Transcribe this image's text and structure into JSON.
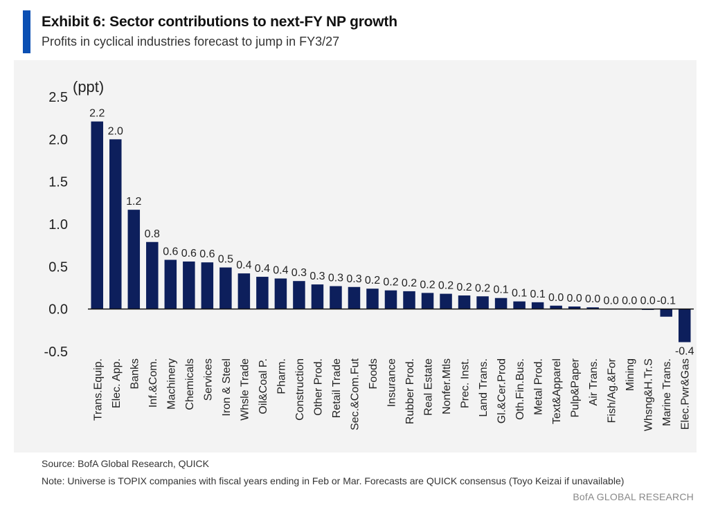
{
  "header": {
    "title": "Exhibit 6: Sector contributions to next-FY NP growth",
    "subtitle": "Profits in cyclical industries forecast to jump in FY3/27"
  },
  "footer": {
    "source": "Source: BofA Global Research, QUICK",
    "note": "Note: Universe is TOPIX companies with fiscal years ending in Feb or Mar. Forecasts are QUICK consensus (Toyo Keizai if unavailable)",
    "brand": "BofA GLOBAL RESEARCH"
  },
  "colors": {
    "bar": "#0d1f5c",
    "accent": "#0a4fb3",
    "panel": "#f3f3f3"
  },
  "chart_data": {
    "type": "bar",
    "title": "",
    "xlabel": "",
    "ylabel": "(ppt)",
    "ylim": [
      -0.5,
      2.5
    ],
    "yticks": [
      -0.5,
      0.0,
      0.5,
      1.0,
      1.5,
      2.0,
      2.5
    ],
    "ytick_labels": [
      "-0.5",
      "0.0",
      "0.5",
      "1.0",
      "1.5",
      "2.0",
      "2.5"
    ],
    "grid": false,
    "categories": [
      "Trans.Equip.",
      "Elec. App.",
      "Banks",
      "Inf.&Com.",
      "Machinery",
      "Chemicals",
      "Services",
      "Iron & Steel",
      "Whsle Trade",
      "Oil&Coal P.",
      "Pharm.",
      "Construction",
      "Other Prod.",
      "Retail Trade",
      "Sec.&Com.Fut",
      "Foods",
      "Insurance",
      "Rubber Prod.",
      "Real Estate",
      "Nonfer.Mtls",
      "Prec. Inst.",
      "Land Trans.",
      "Gl.&Cer.Prod",
      "Oth.Fin.Bus.",
      "Metal Prod.",
      "Text&Apparel",
      "Pulp&Paper",
      "Air Trans.",
      "Fish/Ag.&For",
      "Mining",
      "Whsng&H.Tr.S",
      "Marine Trans.",
      "Elec.Pwr&Gas"
    ],
    "values": [
      2.21,
      2.0,
      1.17,
      0.79,
      0.58,
      0.56,
      0.55,
      0.49,
      0.42,
      0.38,
      0.36,
      0.33,
      0.29,
      0.27,
      0.26,
      0.24,
      0.22,
      0.21,
      0.19,
      0.18,
      0.16,
      0.15,
      0.13,
      0.09,
      0.08,
      0.04,
      0.03,
      0.02,
      0.0,
      0.0,
      -0.01,
      -0.09,
      -0.39
    ],
    "data_labels": [
      "2.2",
      "2.0",
      "1.2",
      "0.8",
      "0.6",
      "0.6",
      "0.6",
      "0.5",
      "0.4",
      "0.4",
      "0.4",
      "0.3",
      "0.3",
      "0.3",
      "0.3",
      "0.2",
      "0.2",
      "0.2",
      "0.2",
      "0.2",
      "0.2",
      "0.2",
      "0.1",
      "0.1",
      "0.1",
      "0.0",
      "0.0",
      "0.0",
      "0.0",
      "0.0",
      "0.0",
      "-0.1",
      "-0.4"
    ]
  }
}
